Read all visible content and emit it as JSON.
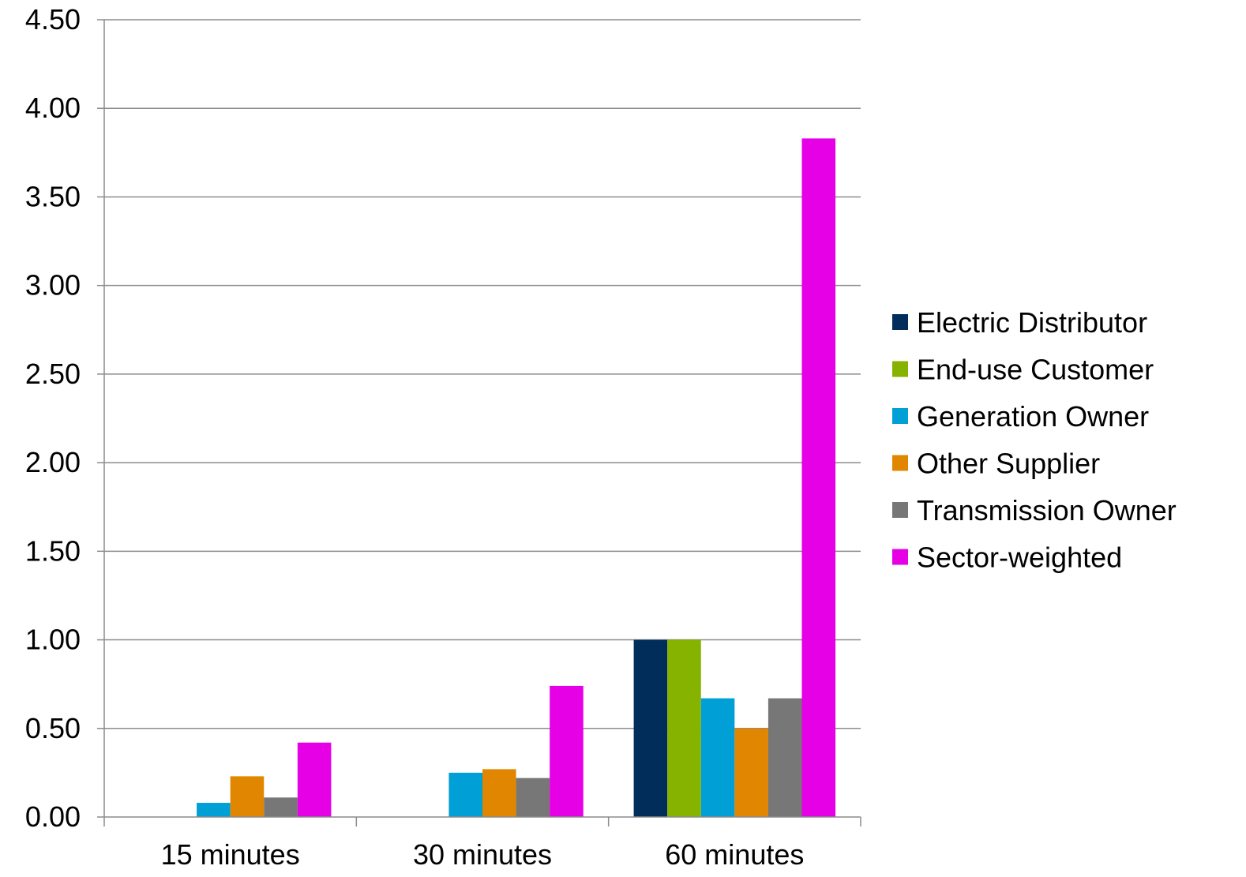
{
  "chart_data": {
    "type": "bar",
    "title": "",
    "xlabel": "",
    "ylabel": "",
    "ylim": [
      0,
      4.5
    ],
    "y_ticks": [
      "0.00",
      "0.50",
      "1.00",
      "1.50",
      "2.00",
      "2.50",
      "3.00",
      "3.50",
      "4.00",
      "4.50"
    ],
    "y_tick_values": [
      0,
      0.5,
      1,
      1.5,
      2,
      2.5,
      3,
      3.5,
      4,
      4.5
    ],
    "grid": true,
    "legend_position": "right",
    "categories": [
      "15 minutes",
      "30 minutes",
      "60 minutes"
    ],
    "series": [
      {
        "name": "Electric Distributor",
        "color": "#002d5a",
        "values": [
          0,
          0,
          1.0
        ]
      },
      {
        "name": "End-use Customer",
        "color": "#86b300",
        "values": [
          0,
          0,
          1.0
        ]
      },
      {
        "name": "Generation Owner",
        "color": "#009fd6",
        "values": [
          0.08,
          0.25,
          0.67
        ]
      },
      {
        "name": "Other Supplier",
        "color": "#e08600",
        "values": [
          0.23,
          0.27,
          0.5
        ]
      },
      {
        "name": "Transmission Owner",
        "color": "#777777",
        "values": [
          0.11,
          0.22,
          0.67
        ]
      },
      {
        "name": "Sector-weighted",
        "color": "#e600e6",
        "values": [
          0.42,
          0.74,
          3.83
        ]
      }
    ]
  }
}
